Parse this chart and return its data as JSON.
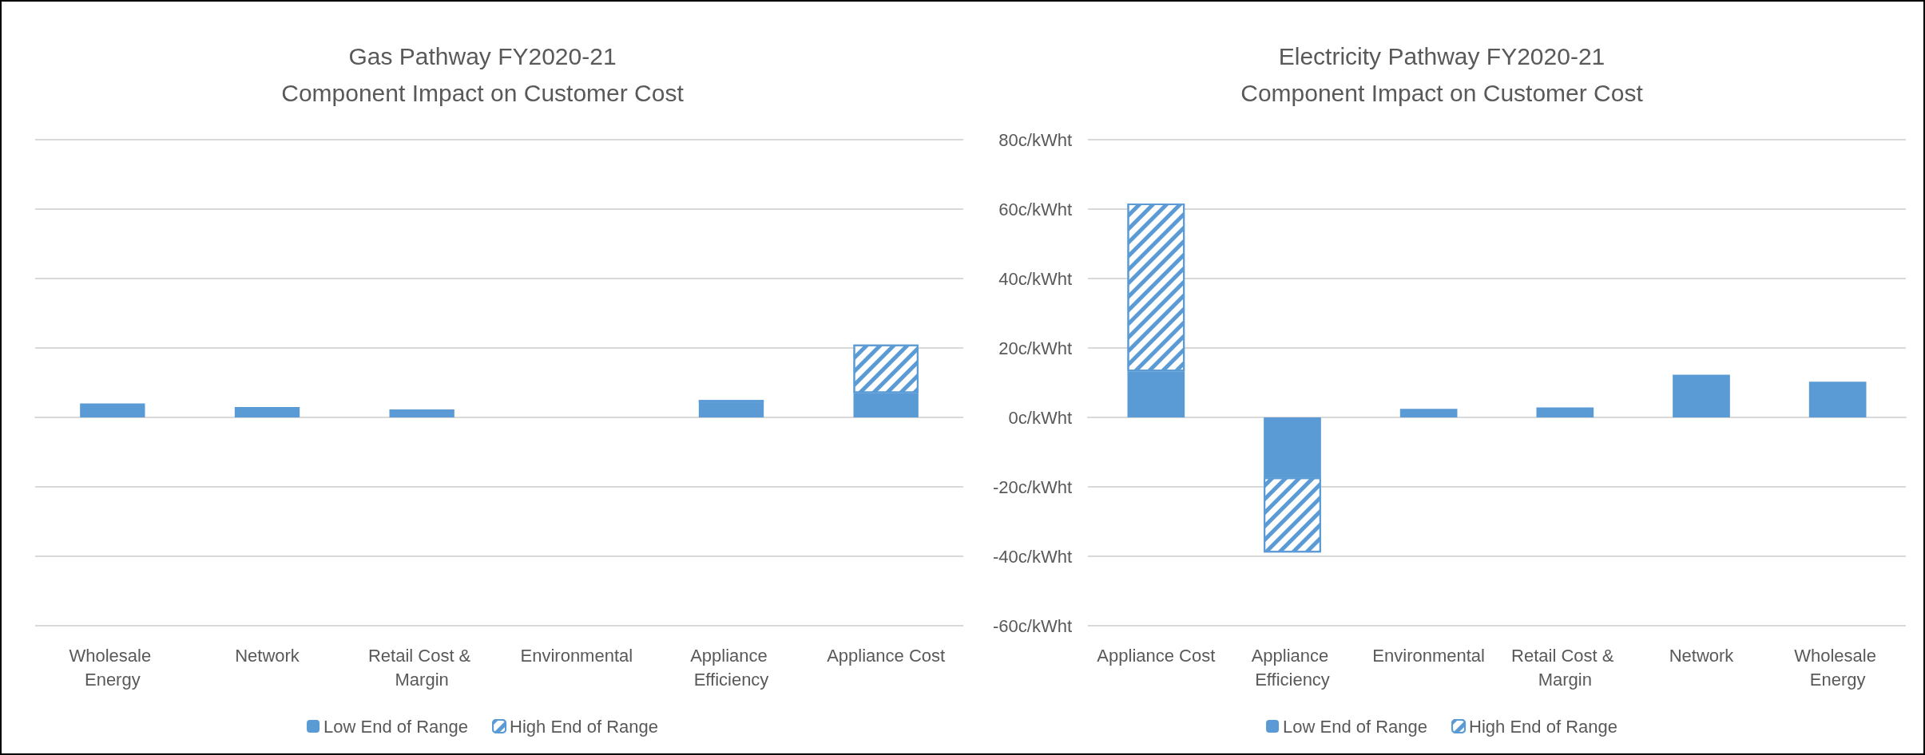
{
  "chart_data": [
    {
      "type": "bar",
      "title": "Gas Pathway FY2020-21",
      "subtitle": "Component Impact on Customer Cost",
      "categories": [
        "Wholesale Energy",
        "Network",
        "Retail Cost & Margin",
        "Environmental",
        "Appliance Efficiency",
        "Appliance Cost"
      ],
      "stacked": true,
      "series": [
        {
          "name": "Low End of Range",
          "color": "#5b9bd5",
          "values": [
            4,
            3,
            2.3,
            0,
            4.2,
            7
          ]
        },
        {
          "name": "High End of Range",
          "color": "#5b9bd5",
          "values": [
            null,
            null,
            null,
            null,
            0.8,
            14
          ]
        }
      ],
      "ylim": [
        -60,
        80
      ],
      "yticks": [
        -60,
        -40,
        -20,
        0,
        20,
        40,
        60,
        80
      ],
      "tick_labels": "x",
      "grid": "y",
      "legend": "bottom"
    },
    {
      "type": "bar",
      "title": "Electricity Pathway FY2020-21",
      "subtitle": "Component Impact on Customer Cost",
      "categories": [
        "Appliance Cost",
        "Appliance Efficiency",
        "Environmental",
        "Retail Cost & Margin",
        "Network",
        "Wholesale Energy"
      ],
      "stacked": true,
      "series": [
        {
          "name": "Low End of Range",
          "color": "#5b9bd5",
          "values": [
            13.3,
            -17.3,
            2.5,
            2.9,
            12.3,
            10.3
          ]
        },
        {
          "name": "High End of Range",
          "color": "#5b9bd5",
          "values": [
            48.3,
            -21.6,
            null,
            null,
            null,
            null
          ]
        }
      ],
      "ylim": [
        -60,
        80
      ],
      "yticks": [
        {
          "value": -60,
          "label": "-60c/kWht"
        },
        {
          "value": -40,
          "label": "-40c/kWht"
        },
        {
          "value": -20,
          "label": "-20c/kWht"
        },
        {
          "value": 0,
          "label": "0c/kWht"
        },
        {
          "value": 20,
          "label": "20c/kWht"
        },
        {
          "value": 40,
          "label": "40c/kWht"
        },
        {
          "value": 60,
          "label": "60c/kWht"
        },
        {
          "value": 80,
          "label": "80c/kWht"
        }
      ],
      "grid": "y",
      "legend": "bottom"
    }
  ]
}
